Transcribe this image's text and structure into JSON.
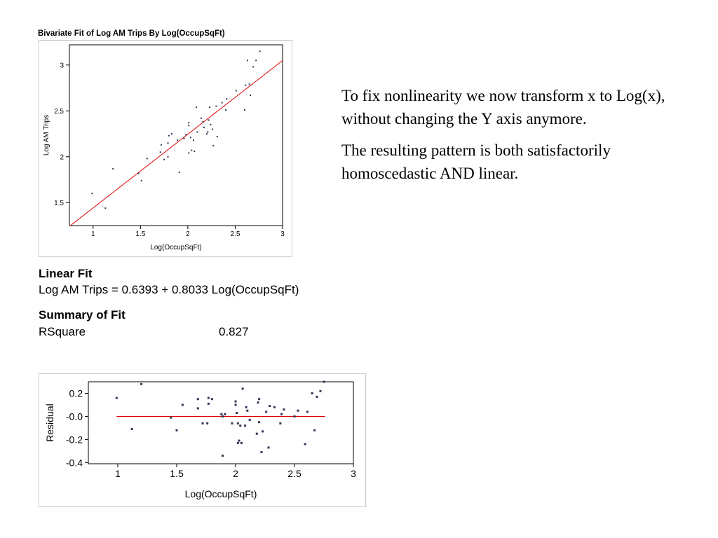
{
  "slide_text": {
    "paragraph1": "To fix nonlinearity we now transform x to Log(x), without changing the Y axis anymore.",
    "paragraph2": "The resulting pattern is both satisfactorily homoscedastic AND linear."
  },
  "stats": {
    "linear_fit_heading": "Linear Fit",
    "linear_fit_equation": "Log AM Trips = 0.6393 + 0.8033 Log(OccupSqFt)",
    "summary_heading": "Summary of Fit",
    "rsquare_label": "RSquare",
    "rsquare_value": "0.827"
  },
  "chart_data": [
    {
      "type": "scatter",
      "title": "Bivariate Fit of Log AM Trips By Log(OccupSqFt)",
      "xlabel": "Log(OccupSqFt)",
      "ylabel": "Log AM Trips",
      "xlim": [
        0.75,
        3.0
      ],
      "ylim": [
        1.25,
        3.22
      ],
      "xticks": [
        1,
        1.5,
        2,
        2.5,
        3
      ],
      "xtick_labels": [
        "1",
        "1.5",
        "2",
        "2.5",
        "3"
      ],
      "yticks": [
        1.5,
        2,
        2.5,
        3
      ],
      "ytick_labels": [
        "1.5",
        "2",
        "2.5",
        "3"
      ],
      "fit_line": {
        "intercept": 0.6393,
        "slope": 0.8033,
        "color": "#e00000"
      },
      "point_color": "#333355",
      "points": [
        [
          0.99,
          1.6
        ],
        [
          1.13,
          1.44
        ],
        [
          1.21,
          1.87
        ],
        [
          1.48,
          1.82
        ],
        [
          1.51,
          1.74
        ],
        [
          1.57,
          1.98
        ],
        [
          1.71,
          2.05
        ],
        [
          1.72,
          2.13
        ],
        [
          1.75,
          1.97
        ],
        [
          1.79,
          2.15
        ],
        [
          1.79,
          2.0
        ],
        [
          1.8,
          2.23
        ],
        [
          1.83,
          2.25
        ],
        [
          1.89,
          2.18
        ],
        [
          1.91,
          1.83
        ],
        [
          1.96,
          2.2
        ],
        [
          1.98,
          2.24
        ],
        [
          2.01,
          2.37
        ],
        [
          2.01,
          2.34
        ],
        [
          2.01,
          2.04
        ],
        [
          2.03,
          2.21
        ],
        [
          2.04,
          2.07
        ],
        [
          2.06,
          2.18
        ],
        [
          2.07,
          2.06
        ],
        [
          2.09,
          2.54
        ],
        [
          2.1,
          2.27
        ],
        [
          2.14,
          2.42
        ],
        [
          2.16,
          2.38
        ],
        [
          2.17,
          2.32
        ],
        [
          2.2,
          2.25
        ],
        [
          2.21,
          2.27
        ],
        [
          2.22,
          2.4
        ],
        [
          2.23,
          2.54
        ],
        [
          2.24,
          2.35
        ],
        [
          2.26,
          2.3
        ],
        [
          2.27,
          2.12
        ],
        [
          2.3,
          2.55
        ],
        [
          2.31,
          2.22
        ],
        [
          2.36,
          2.59
        ],
        [
          2.4,
          2.51
        ],
        [
          2.41,
          2.63
        ],
        [
          2.51,
          2.72
        ],
        [
          2.6,
          2.51
        ],
        [
          2.61,
          2.78
        ],
        [
          2.63,
          3.05
        ],
        [
          2.65,
          2.79
        ],
        [
          2.66,
          2.67
        ],
        [
          2.69,
          2.98
        ],
        [
          2.72,
          3.05
        ],
        [
          2.76,
          3.15
        ]
      ]
    },
    {
      "type": "scatter",
      "xlabel": "Log(OccupSqFt)",
      "ylabel": "Residual",
      "xlim": [
        0.75,
        3.0
      ],
      "ylim": [
        -0.41,
        0.3
      ],
      "xticks": [
        1,
        1.5,
        2,
        2.5,
        3
      ],
      "xtick_labels": [
        "1",
        "1.5",
        "2",
        "2.5",
        "3"
      ],
      "yticks": [
        0.2,
        0.0,
        -0.2,
        -0.4
      ],
      "ytick_labels": [
        "0.2",
        "-0.0",
        "-0.2",
        "-0.4"
      ],
      "zero_line": {
        "y": 0,
        "x_range": [
          0.99,
          2.76
        ],
        "color": "#e00000"
      },
      "point_color": "#333355",
      "points": [
        [
          0.99,
          0.16
        ],
        [
          1.12,
          -0.11
        ],
        [
          1.2,
          0.28
        ],
        [
          1.45,
          -0.01
        ],
        [
          1.5,
          -0.12
        ],
        [
          1.55,
          0.1
        ],
        [
          1.68,
          0.15
        ],
        [
          1.68,
          0.07
        ],
        [
          1.72,
          -0.06
        ],
        [
          1.76,
          -0.06
        ],
        [
          1.77,
          0.16
        ],
        [
          1.77,
          0.11
        ],
        [
          1.8,
          0.15
        ],
        [
          1.88,
          0.02
        ],
        [
          1.89,
          0.0
        ],
        [
          1.89,
          -0.34
        ],
        [
          1.91,
          0.02
        ],
        [
          1.97,
          -0.06
        ],
        [
          2.0,
          0.1
        ],
        [
          2.0,
          0.13
        ],
        [
          2.01,
          0.03
        ],
        [
          2.02,
          -0.06
        ],
        [
          2.02,
          -0.23
        ],
        [
          2.03,
          -0.21
        ],
        [
          2.04,
          -0.08
        ],
        [
          2.05,
          -0.23
        ],
        [
          2.06,
          0.24
        ],
        [
          2.08,
          -0.08
        ],
        [
          2.09,
          0.08
        ],
        [
          2.1,
          0.05
        ],
        [
          2.12,
          -0.03
        ],
        [
          2.18,
          -0.15
        ],
        [
          2.19,
          0.12
        ],
        [
          2.2,
          0.15
        ],
        [
          2.2,
          -0.05
        ],
        [
          2.22,
          -0.31
        ],
        [
          2.23,
          -0.13
        ],
        [
          2.26,
          0.04
        ],
        [
          2.28,
          -0.27
        ],
        [
          2.29,
          0.09
        ],
        [
          2.33,
          0.08
        ],
        [
          2.38,
          -0.06
        ],
        [
          2.39,
          0.02
        ],
        [
          2.41,
          0.06
        ],
        [
          2.5,
          0.0
        ],
        [
          2.53,
          0.05
        ],
        [
          2.59,
          -0.24
        ],
        [
          2.61,
          0.04
        ],
        [
          2.65,
          0.2
        ],
        [
          2.67,
          -0.12
        ],
        [
          2.69,
          0.17
        ],
        [
          2.72,
          0.22
        ],
        [
          2.75,
          0.3
        ]
      ]
    }
  ]
}
